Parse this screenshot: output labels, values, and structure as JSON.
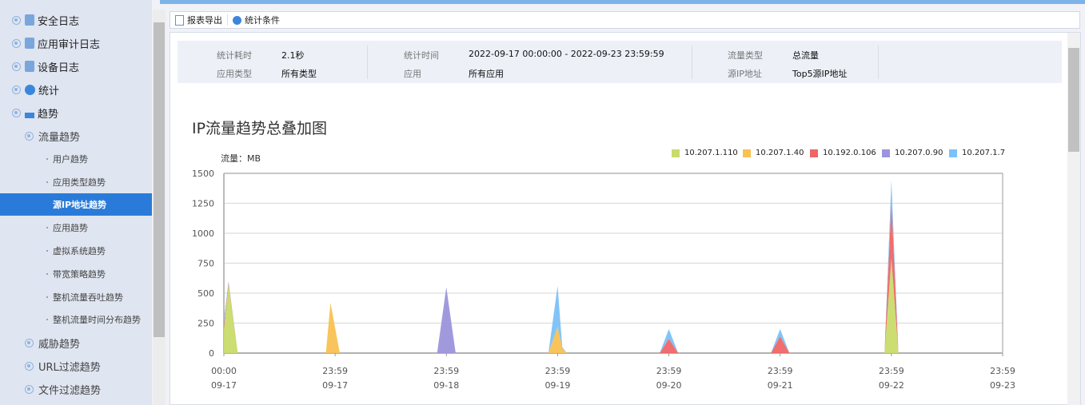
{
  "sidebar": {
    "items": [
      {
        "label": "安全日志",
        "icon": "log-file-icon"
      },
      {
        "label": "应用审计日志",
        "icon": "audit-file-icon"
      },
      {
        "label": "设备日志",
        "icon": "device-file-icon"
      },
      {
        "label": "统计",
        "icon": "pie-chart-icon"
      },
      {
        "label": "趋势",
        "icon": "trend-chart-icon"
      }
    ],
    "traffic_trend": "流量趋势",
    "sub_items": [
      "用户趋势",
      "应用类型趋势",
      "源IP地址趋势",
      "应用趋势",
      "虚拟系统趋势",
      "带宽策略趋势",
      "整机流量吞吐趋势",
      "整机流量时间分布趋势"
    ],
    "active_sub": "源IP地址趋势",
    "more": [
      "威胁趋势",
      "URL过滤趋势",
      "文件过滤趋势"
    ]
  },
  "toolbar": {
    "export": "报表导出",
    "conditions": "统计条件"
  },
  "info": {
    "duration_label": "统计耗时",
    "duration": "2.1秒",
    "app_type_label": "应用类型",
    "app_type": "所有类型",
    "time_label": "统计时间",
    "time": "2022-09-17 00:00:00 - 2022-09-23 23:59:59",
    "app_label": "应用",
    "app": "所有应用",
    "flow_type_label": "流量类型",
    "flow_type": "总流量",
    "src_ip_label": "源IP地址",
    "src_ip": "Top5源IP地址"
  },
  "chart_data": {
    "type": "area",
    "stacked": true,
    "title": "IP流量趋势总叠加图",
    "ylabel": "流量：MB",
    "ylim": [
      0,
      1500
    ],
    "yticks": [
      0,
      250,
      500,
      750,
      1000,
      1250,
      1500
    ],
    "xlim": [
      "2022-09-17 00:00",
      "2022-09-23 23:59"
    ],
    "xticks": [
      [
        "00:00",
        "09-17"
      ],
      [
        "23:59",
        "09-17"
      ],
      [
        "23:59",
        "09-18"
      ],
      [
        "23:59",
        "09-19"
      ],
      [
        "23:59",
        "09-20"
      ],
      [
        "23:59",
        "09-21"
      ],
      [
        "23:59",
        "09-22"
      ],
      [
        "23:59",
        "09-23"
      ]
    ],
    "grid": true,
    "legend": "top-right",
    "x": [
      "2022-09-17 00:00",
      "2022-09-17 01:00",
      "2022-09-17 03:00",
      "2022-09-17 22:00",
      "2022-09-17 23:00",
      "2022-09-18 01:00",
      "2022-09-18 22:00",
      "2022-09-18 23:59",
      "2022-09-19 02:00",
      "2022-09-19 22:00",
      "2022-09-19 23:59",
      "2022-09-20 01:00",
      "2022-09-20 02:00",
      "2022-09-20 22:00",
      "2022-09-20 23:59",
      "2022-09-21 02:00",
      "2022-09-21 22:00",
      "2022-09-21 23:59",
      "2022-09-22 02:00",
      "2022-09-22 22:30",
      "2022-09-22 23:59",
      "2022-09-23 01:30",
      "2022-09-23 23:59"
    ],
    "series": [
      {
        "name": "10.207.1.110",
        "color": "#c9db6a",
        "values": [
          200,
          570,
          0,
          0,
          0,
          0,
          0,
          0,
          0,
          0,
          0,
          0,
          0,
          0,
          0,
          0,
          0,
          0,
          0,
          0,
          790,
          0,
          0
        ]
      },
      {
        "name": "10.207.1.40",
        "color": "#f9c152",
        "values": [
          0,
          0,
          0,
          0,
          420,
          0,
          0,
          0,
          0,
          0,
          220,
          40,
          0,
          0,
          0,
          0,
          0,
          0,
          0,
          0,
          0,
          0,
          0
        ]
      },
      {
        "name": "10.192.0.106",
        "color": "#ef6666",
        "values": [
          40,
          20,
          0,
          0,
          0,
          0,
          0,
          0,
          0,
          0,
          0,
          0,
          0,
          0,
          120,
          0,
          0,
          140,
          0,
          0,
          480,
          0,
          0
        ]
      },
      {
        "name": "10.207.0.90",
        "color": "#9b95db",
        "values": [
          0,
          0,
          0,
          0,
          0,
          0,
          0,
          550,
          0,
          0,
          0,
          0,
          0,
          0,
          0,
          0,
          0,
          0,
          0,
          0,
          0,
          0,
          0
        ]
      },
      {
        "name": "10.207.1.7",
        "color": "#7cc1f7",
        "values": [
          30,
          10,
          0,
          0,
          0,
          0,
          0,
          0,
          0,
          0,
          340,
          10,
          0,
          0,
          80,
          0,
          0,
          60,
          0,
          0,
          170,
          0,
          0
        ]
      }
    ]
  }
}
